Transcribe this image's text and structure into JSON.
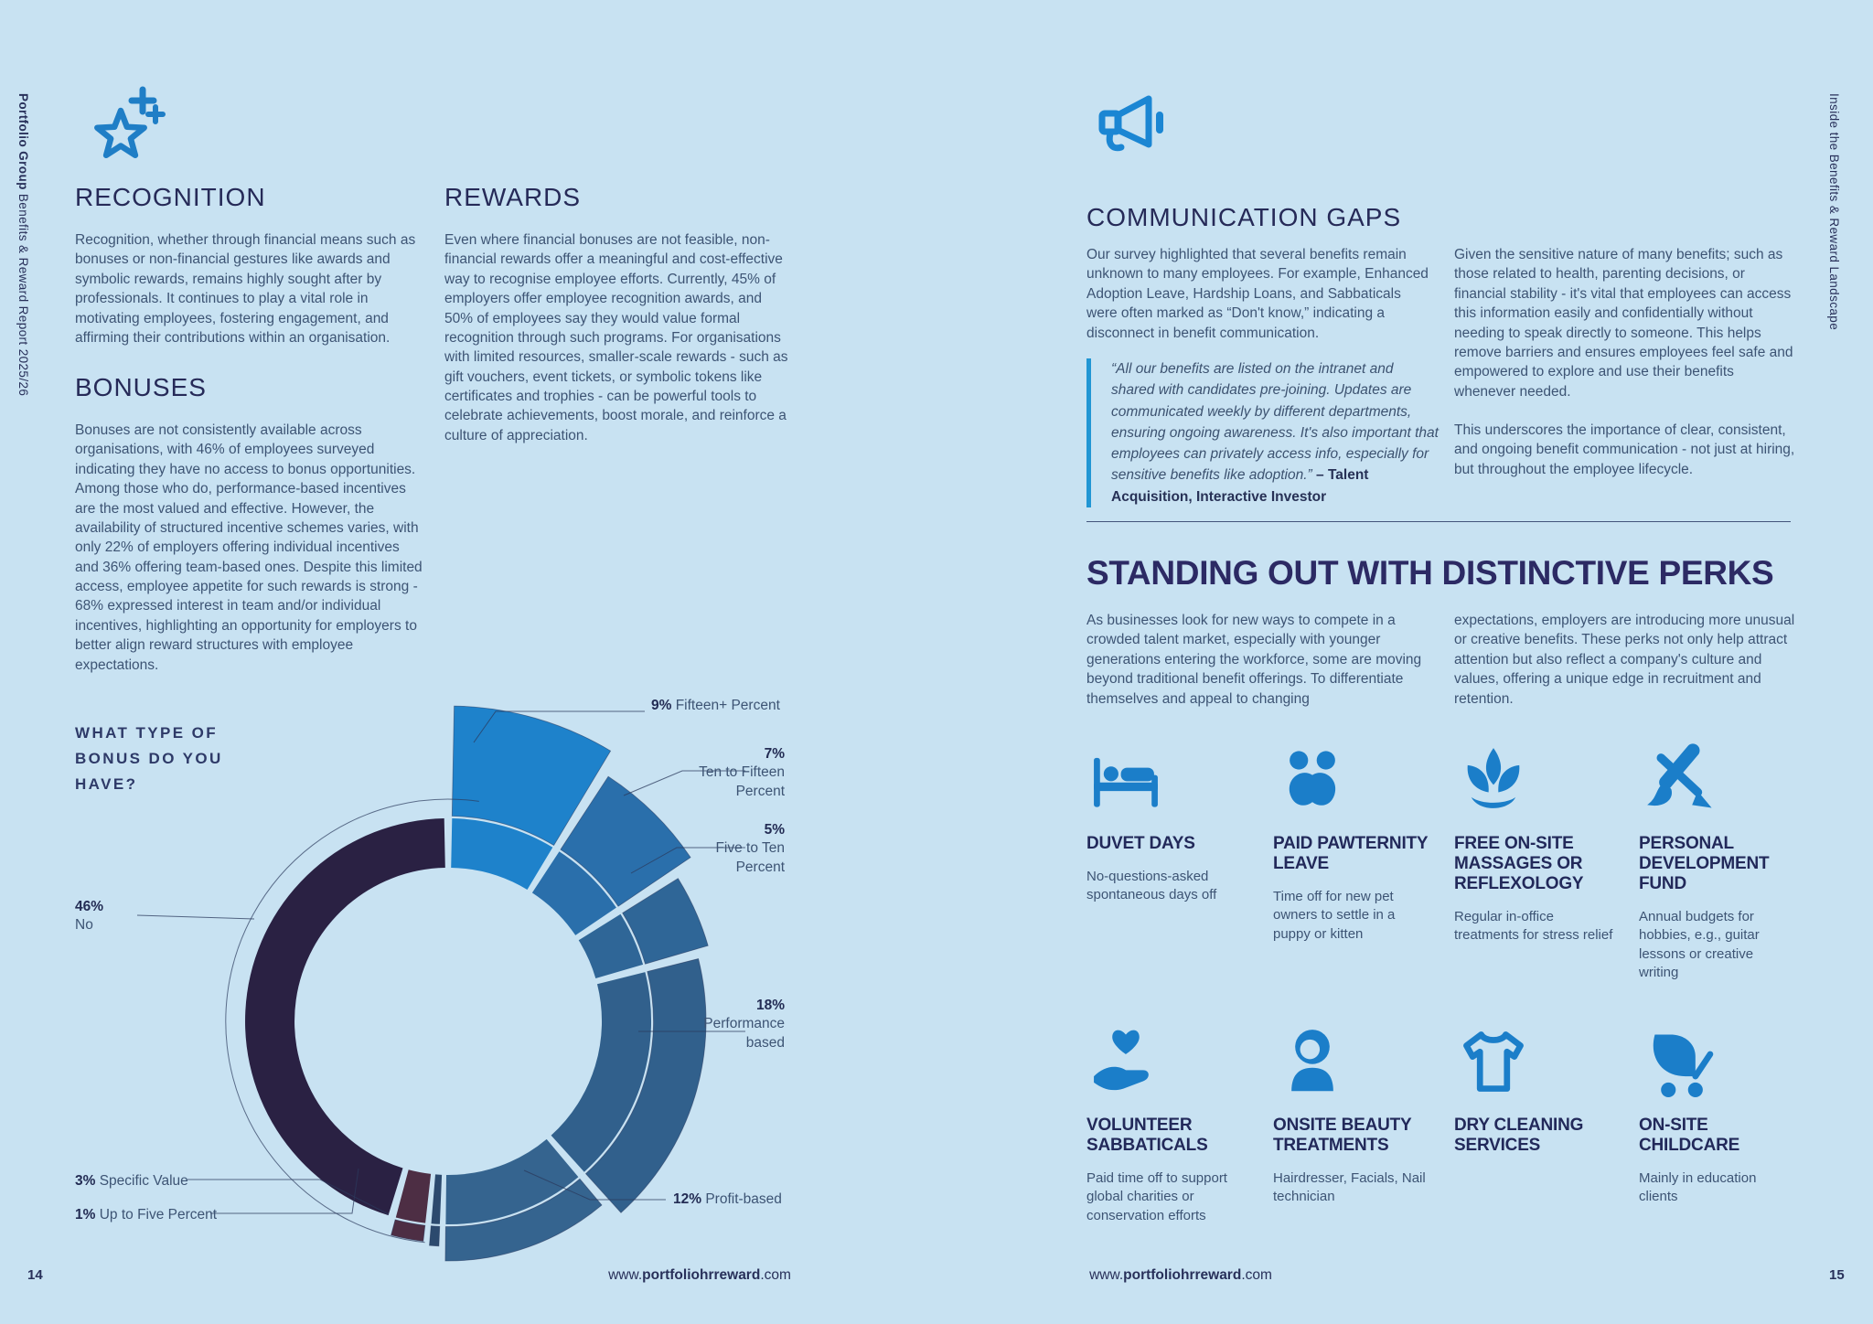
{
  "left_margin_text": {
    "bold": "Portfolio Group",
    "rest": " Benefits & Reward Report 2025/26"
  },
  "right_margin_text": "Inside the Benefits & Reward Landscape",
  "colors": {
    "background": "#c8e2f2",
    "heading_navy": "#262a58",
    "body_slate": "#3d5474",
    "icon_blue": "#1b7ec9",
    "quote_bar_blue": "#2196d4"
  },
  "left_page": {
    "page_number": "14",
    "footer": {
      "prefix": "www.",
      "bold": "portfoliohrreward",
      "suffix": ".com"
    },
    "icons": {
      "header_icon": "star-plus-icon"
    },
    "recognition": {
      "heading": "RECOGNITION",
      "body": "Recognition, whether through financial means such as bonuses or non-financial gestures like awards and symbolic rewards, remains highly sought after by professionals. It continues to play a vital role in motivating employees, fostering engagement, and affirming their contributions within an organisation."
    },
    "bonuses": {
      "heading": "BONUSES",
      "body": "Bonuses are not consistently available across organisations, with 46% of employees surveyed indicating they have no access to bonus opportunities. Among those who do, performance-based incentives are the most valued and effective. However, the availability of structured incentive schemes varies, with only 22% of employers offering individual incentives and 36% offering team-based ones. Despite this limited access, employee appetite for such rewards is strong - 68% expressed interest in team and/or individual incentives, highlighting an opportunity for employers to better align reward structures with employee expectations."
    },
    "rewards": {
      "heading": "REWARDS",
      "body": "Even where financial bonuses are not feasible, non-financial rewards offer a meaningful and cost-effective way to recognise employee efforts. Currently, 45% of employers offer employee recognition awards, and 50% of employees say they would value formal recognition through such programs. For organisations with limited resources, smaller-scale rewards - such as gift vouchers, event tickets, or symbolic tokens like certificates and trophies - can be powerful tools to celebrate achievements, boost morale, and reinforce a culture of appreciation."
    }
  },
  "right_page": {
    "page_number": "15",
    "footer": {
      "prefix": "www.",
      "bold": "portfoliohrreward",
      "suffix": ".com"
    },
    "icons": {
      "header_icon": "megaphone-icon"
    },
    "communication_gaps": {
      "heading": "COMMUNICATION GAPS",
      "col1": "Our survey highlighted that several benefits remain unknown to many employees. For example, Enhanced Adoption Leave, Hardship Loans, and Sabbaticals were often marked as “Don't know,” indicating a disconnect in benefit communication.",
      "quote": {
        "text": "“All our benefits are listed on the intranet and shared with candidates pre-joining. Updates are communicated weekly by different departments, ensuring ongoing awareness. It's also important that employees can privately access info, especially for sensitive benefits like adoption.” ",
        "attribution": "– Talent Acquisition, Interactive Investor"
      },
      "col2_p1": "Given the sensitive nature of many benefits; such as those related to health, parenting decisions, or financial stability - it's vital that employees can access this information easily and confidentially without needing to speak directly to someone. This helps remove barriers and ensures employees feel safe and empowered to explore and use their benefits whenever needed.",
      "col2_p2": "This underscores the importance of clear, consistent, and ongoing benefit communication - not just at hiring, but throughout the employee lifecycle."
    },
    "standing_out": {
      "heading": "STANDING OUT WITH DISTINCTIVE PERKS",
      "col1": "As businesses look for new ways to compete in a crowded talent market, especially with younger generations entering the workforce, some are moving beyond traditional benefit offerings. To differentiate themselves and appeal to changing",
      "col2": "expectations, employers are introducing more unusual or creative benefits. These perks not only help attract attention but also reflect a company's culture and values, offering a unique edge in recruitment and retention."
    },
    "perks": [
      {
        "icon": "bed-icon",
        "title": "DUVET DAYS",
        "desc": "No-questions-asked spontaneous days off"
      },
      {
        "icon": "paw-icon",
        "title": "PAID PAWTERNITY LEAVE",
        "desc": "Time off for new pet owners to settle in a puppy or kitten"
      },
      {
        "icon": "lotus-icon",
        "title": "FREE ON-SITE MASSAGES OR REFLEXOLOGY",
        "desc": "Regular in-office treatments for stress relief"
      },
      {
        "icon": "paintbrush-icon",
        "title": "PERSONAL DEVELOPMENT FUND",
        "desc": "Annual budgets for hobbies, e.g., guitar lessons or creative writing"
      },
      {
        "icon": "heart-hand-icon",
        "title": "VOLUNTEER SABBATICALS",
        "desc": "Paid time off to support global charities or conservation efforts"
      },
      {
        "icon": "person-icon",
        "title": "ONSITE BEAUTY TREATMENTS",
        "desc": "Hairdresser, Facials, Nail technician"
      },
      {
        "icon": "tshirt-icon",
        "title": "DRY CLEANING SERVICES",
        "desc": ""
      },
      {
        "icon": "stroller-icon",
        "title": "ON-SITE CHILDCARE",
        "desc": "Mainly in education clients"
      }
    ]
  },
  "chart_data": {
    "type": "donut",
    "title": "WHAT TYPE OF BONUS DO YOU HAVE?",
    "question": "What type of bonus do you have?",
    "legend_position": "callout-labels",
    "segments": [
      {
        "pct": "9%",
        "label": "Fifteen+ Percent",
        "value": 9,
        "color": "#1e82cb",
        "ext": 345
      },
      {
        "pct": "7%",
        "label": "Ten to Fifteen Percent",
        "value": 7,
        "color": "#2a6fab",
        "ext": 320
      },
      {
        "pct": "5%",
        "label": "Five to Ten Percent",
        "value": 5,
        "color": "#2f6697",
        "ext": 296
      },
      {
        "pct": "18%",
        "label": "Performance based",
        "value": 18,
        "color": "#31608c",
        "ext": 282
      },
      {
        "pct": "12%",
        "label": "Profit-based",
        "value": 12,
        "color": "#35648f",
        "ext": 262
      },
      {
        "pct": "1%",
        "label": "Up to Five Percent",
        "value": 1,
        "color": "#2c4a6e",
        "ext": 246
      },
      {
        "pct": "3%",
        "label": "Specific Value",
        "value": 3,
        "color": "#4d2e44",
        "ext": 242
      },
      {
        "pct": "46%",
        "label": "No",
        "value": 46,
        "color": "#2a2143",
        "ext": null
      }
    ]
  }
}
